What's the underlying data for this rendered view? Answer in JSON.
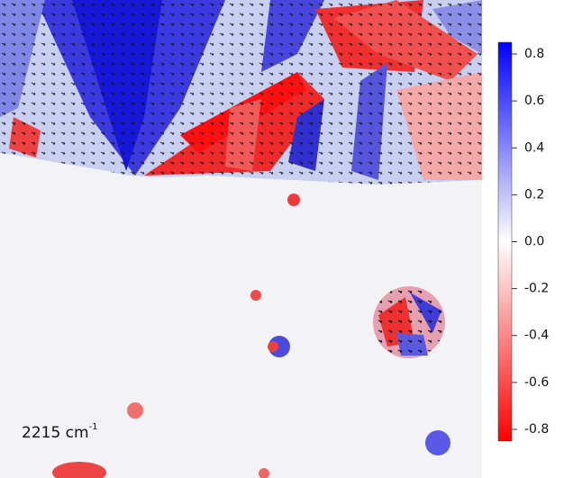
{
  "chart_data": {
    "type": "heatmap",
    "annotation": {
      "text": "2215 cm",
      "superscript": "-1"
    },
    "colormap": [
      "#ff0000",
      "#ffffff",
      "#0000ff"
    ],
    "clim": [
      -0.85,
      0.85
    ],
    "cticks": [
      0.8,
      0.6,
      0.4,
      0.2,
      {
        "value": 0,
        "label": "0.0"
      },
      -0.2,
      -0.4,
      -0.6,
      -0.8
    ]
  }
}
